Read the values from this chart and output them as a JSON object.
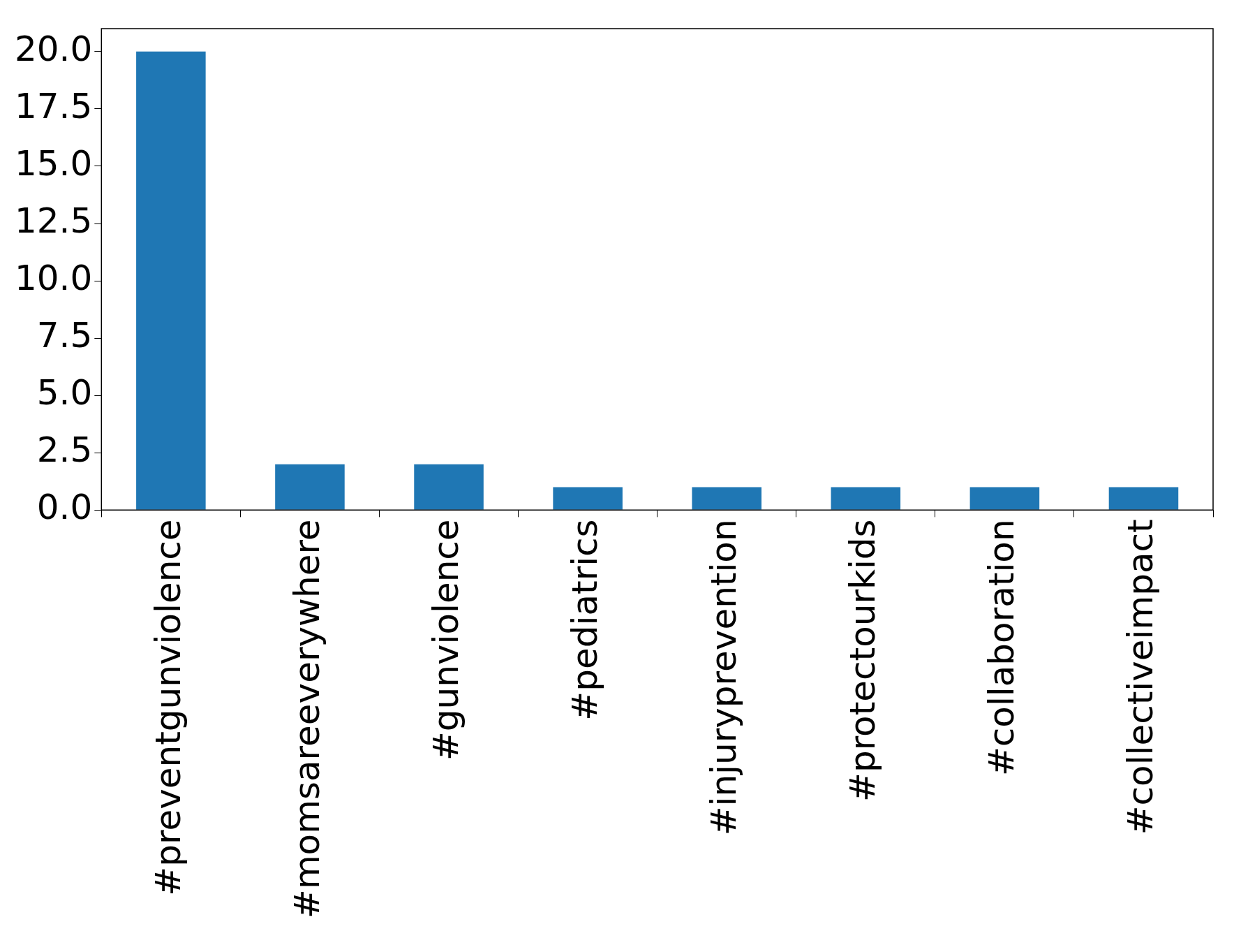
{
  "chart_data": {
    "type": "bar",
    "categories": [
      "#preventgunviolence",
      "#momsareeverywhere",
      "#gunviolence",
      "#pediatrics",
      "#injuryprevention",
      "#protectourkids",
      "#collaboration",
      "#collectiveimpact"
    ],
    "values": [
      20,
      2,
      2,
      1,
      1,
      1,
      1,
      1
    ],
    "color": "#1f77b4",
    "ylim": [
      0,
      21
    ],
    "yticks": [
      {
        "value": 0,
        "label": "0.0"
      },
      {
        "value": 2.5,
        "label": "2.5"
      },
      {
        "value": 5,
        "label": "5.0"
      },
      {
        "value": 7.5,
        "label": "7.5"
      },
      {
        "value": 10,
        "label": "10.0"
      },
      {
        "value": 12.5,
        "label": "12.5"
      },
      {
        "value": 15,
        "label": "15.0"
      },
      {
        "value": 17.5,
        "label": "17.5"
      },
      {
        "value": 20,
        "label": "20.0"
      }
    ],
    "grid": false,
    "legend": false
  }
}
